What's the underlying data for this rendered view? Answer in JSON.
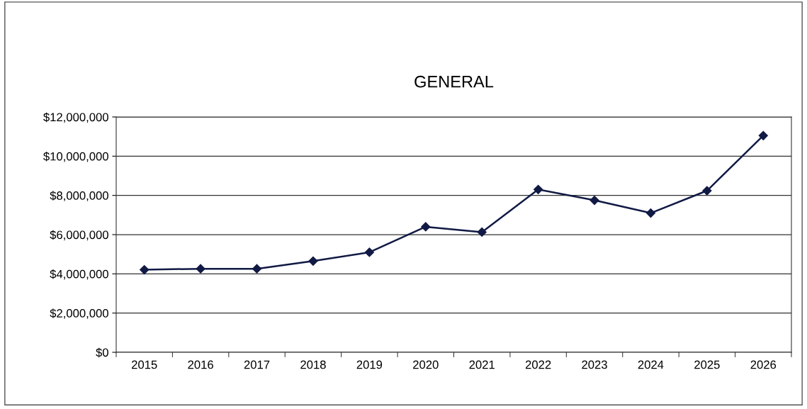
{
  "chart_data": {
    "type": "line",
    "title": "GENERAL",
    "categories": [
      "2015",
      "2016",
      "2017",
      "2018",
      "2019",
      "2020",
      "2021",
      "2022",
      "2023",
      "2024",
      "2025",
      "2026"
    ],
    "series": [
      {
        "color": "#111a44",
        "values": [
          4210000,
          4260000,
          4260000,
          4650000,
          5100000,
          6400000,
          6130000,
          8300000,
          7750000,
          7100000,
          8240000,
          11050000
        ]
      }
    ],
    "ylim": [
      0,
      12000000
    ],
    "yticks": [
      {
        "value": 0,
        "label": "$0"
      },
      {
        "value": 2000000,
        "label": "$2,000,000"
      },
      {
        "value": 4000000,
        "label": "$4,000,000"
      },
      {
        "value": 6000000,
        "label": "$6,000,000"
      },
      {
        "value": 8000000,
        "label": "$8,000,000"
      },
      {
        "value": 10000000,
        "label": "$10,000,000"
      },
      {
        "value": 12000000,
        "label": "$12,000,000"
      }
    ],
    "grid": "y",
    "marker": "diamond",
    "line_style": "solid"
  }
}
